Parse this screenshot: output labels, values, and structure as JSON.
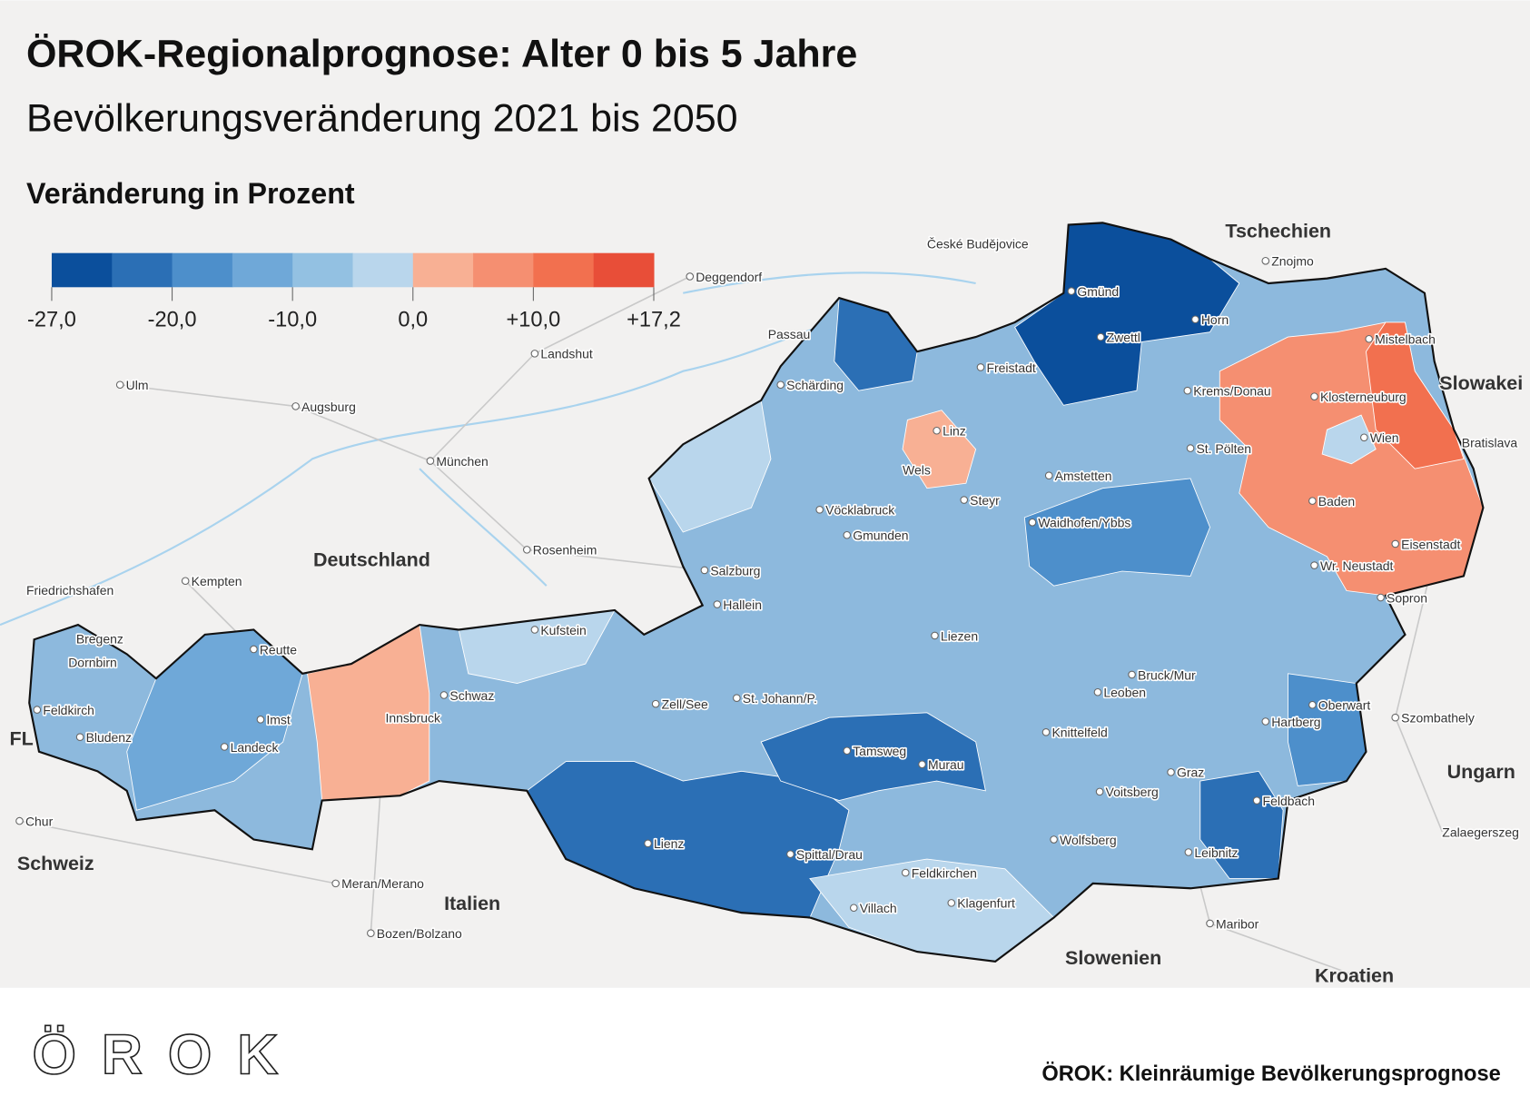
{
  "header": {
    "title": "ÖROK-Regionalprognose: Alter 0 bis 5 Jahre",
    "subtitle": "Bevölkerungsveränderung 2021 bis 2050"
  },
  "legend": {
    "title": "Veränderung in Prozent",
    "colors": [
      "#0b4f9c",
      "#2b6fb5",
      "#4d8fcb",
      "#6fa8d8",
      "#93c1e2",
      "#b9d6ec",
      "#f8b094",
      "#f58f71",
      "#f2704f",
      "#e84e38"
    ],
    "ticks": [
      {
        "value": -27,
        "label": "-27,0"
      },
      {
        "value": -20,
        "label": "-20,0"
      },
      {
        "value": -10,
        "label": "-10,0"
      },
      {
        "value": 0,
        "label": "0,0"
      },
      {
        "value": 10,
        "label": "+10,0"
      },
      {
        "value": 17.2,
        "label": "+17,2"
      }
    ]
  },
  "map": {
    "cities": [
      "Deggendorf",
      "České Budějovice",
      "Znojmo",
      "Passau",
      "Landshut",
      "Ulm",
      "Augsburg",
      "München",
      "Rosenheim",
      "Kempten",
      "Friedrichshafen",
      "Mistelbach",
      "Gmünd",
      "Horn",
      "Zwettl",
      "Freistadt",
      "Schärding",
      "Krems/Donau",
      "Klosterneuburg",
      "Linz",
      "Wien",
      "Bratislava",
      "St. Pölten",
      "Wels",
      "Amstetten",
      "Steyr",
      "Baden",
      "Vöcklabruck",
      "Waidhofen/Ybbs",
      "Gmunden",
      "Eisenstadt",
      "Wr. Neustadt",
      "Salzburg",
      "Sopron",
      "Hallein",
      "Kufstein",
      "Bregenz",
      "Liezen",
      "Reutte",
      "Dornbirn",
      "Bruck/Mur",
      "Leoben",
      "Schwaz",
      "Zell/See",
      "St. Johann/P.",
      "Oberwart",
      "Feldkirch",
      "Imst",
      "Innsbruck",
      "Hartberg",
      "Szombathely",
      "Knittelfeld",
      "Bludenz",
      "Landeck",
      "Tamsweg",
      "Murau",
      "Graz",
      "Voitsberg",
      "Feldbach",
      "Chur",
      "Zalaegerszeg",
      "Wolfsberg",
      "Lienz",
      "Spittal/Drau",
      "Leibnitz",
      "Feldkirchen",
      "Meran/Merano",
      "Klagenfurt",
      "Villach",
      "Maribor",
      "Bozen/Bolzano"
    ],
    "countries": [
      "Tschechien",
      "Slowakei",
      "Deutschland",
      "Ungarn",
      "Schweiz",
      "Italien",
      "Slowenien",
      "Kroatien",
      "FL"
    ]
  },
  "footer": {
    "logo": "ÖROK",
    "source": "ÖROK: Kleinräumige Bevölkerungsprognose"
  }
}
